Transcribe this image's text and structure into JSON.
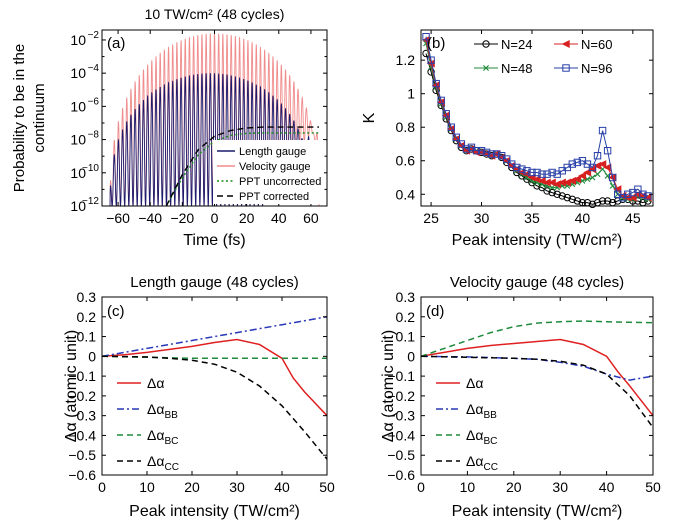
{
  "chart_data": [
    {
      "panel": "(a)",
      "type": "line",
      "title": "10 TW/cm² (48 cycles)",
      "xlabel": "Time (fs)",
      "ylabel_lines": [
        "Probability to be in the",
        "continuum"
      ],
      "xlim": [
        -70,
        70
      ],
      "ylim_log10": [
        -12,
        -1.4
      ],
      "yscale": "log",
      "xticks": [
        -60,
        -40,
        -20,
        0,
        20,
        40,
        60
      ],
      "xtick_labels": [
        "−60",
        "−40",
        "−20",
        "0",
        "20",
        "40",
        "60"
      ],
      "yticks_log10": [
        -12,
        -10,
        -8,
        -6,
        -4,
        -2
      ],
      "ytick_mantissa": "10",
      "ytick_exponents": [
        "−12",
        "−10",
        "−8",
        "−6",
        "−4",
        "−2"
      ],
      "grid": false,
      "legend_position": "bottom-right",
      "series": [
        {
          "name": "Length gauge",
          "color": "#1c1c6e",
          "style": "oscillating",
          "envelope_peak_log10": -4.0,
          "floor_log10": -12.0,
          "x_range": [
            -65,
            60
          ],
          "converges_to_log10": -7.6
        },
        {
          "name": "Velocity gauge",
          "color": "#f08c8c",
          "style": "oscillating",
          "envelope_peak_log10": -1.6,
          "floor_log10": -12.0,
          "x_range": [
            -65,
            65
          ],
          "converges_to_log10": -7.6
        },
        {
          "name": "PPT uncorrected",
          "color": "#1a8a1a",
          "style": "dotted",
          "x": [
            -30,
            -20,
            -10,
            0,
            10,
            20,
            30,
            65
          ],
          "y_log10": [
            -12,
            -10.3,
            -8.9,
            -8.1,
            -7.75,
            -7.62,
            -7.6,
            -7.6
          ]
        },
        {
          "name": "PPT corrected",
          "color": "#000000",
          "style": "dashed",
          "x": [
            -30,
            -20,
            -10,
            0,
            10,
            20,
            30,
            65
          ],
          "y_log10": [
            -12,
            -10.1,
            -8.6,
            -7.8,
            -7.45,
            -7.3,
            -7.25,
            -7.25
          ]
        }
      ]
    },
    {
      "panel": "(b)",
      "type": "line",
      "xlabel": "Peak intensity (TW/cm²)",
      "ylabel": "K",
      "xlim": [
        24,
        47
      ],
      "ylim": [
        0.33,
        1.38
      ],
      "xticks": [
        25,
        30,
        35,
        40,
        45
      ],
      "yticks": [
        0.4,
        0.6,
        0.8,
        1.0,
        1.2
      ],
      "ytick_labels": [
        "0.4",
        "0.6",
        "0.8",
        "1",
        "1.2"
      ],
      "grid": false,
      "legend_position": "top",
      "series": [
        {
          "name": "N=24",
          "color": "#000000",
          "marker": "circle",
          "x": [
            24.5,
            25,
            25.5,
            26,
            26.5,
            27,
            27.5,
            28,
            28.5,
            29,
            29.5,
            30,
            30.5,
            31,
            31.5,
            32,
            32.5,
            33,
            33.5,
            34,
            34.5,
            35,
            35.5,
            36,
            36.5,
            37,
            37.5,
            38,
            38.5,
            39,
            39.5,
            40,
            40.5,
            41,
            41.5,
            42,
            42.5,
            43,
            43.5,
            44,
            44.5,
            45,
            45.5,
            46,
            46.5
          ],
          "y": [
            1.24,
            1.13,
            1.02,
            0.93,
            0.85,
            0.78,
            0.72,
            0.68,
            0.66,
            0.67,
            0.66,
            0.65,
            0.64,
            0.63,
            0.64,
            0.62,
            0.59,
            0.56,
            0.53,
            0.51,
            0.49,
            0.47,
            0.45,
            0.44,
            0.42,
            0.41,
            0.4,
            0.39,
            0.38,
            0.37,
            0.36,
            0.35,
            0.35,
            0.34,
            0.35,
            0.36,
            0.36,
            0.35,
            0.36,
            0.37,
            0.37,
            0.36,
            0.36,
            0.35,
            0.36
          ]
        },
        {
          "name": "N=60",
          "color": "#d82020",
          "marker": "triangle-left",
          "x": [
            24.5,
            25,
            25.5,
            26,
            26.5,
            27,
            27.5,
            28,
            28.5,
            29,
            29.5,
            30,
            30.5,
            31,
            31.5,
            32,
            32.5,
            33,
            33.5,
            34,
            34.5,
            35,
            35.5,
            36,
            36.5,
            37,
            37.5,
            38,
            38.5,
            39,
            39.5,
            40,
            40.5,
            41,
            41.5,
            42,
            42.5,
            43,
            43.5,
            44,
            44.5,
            45,
            45.5,
            46,
            46.5
          ],
          "y": [
            1.32,
            1.18,
            1.05,
            0.95,
            0.87,
            0.79,
            0.73,
            0.69,
            0.66,
            0.67,
            0.65,
            0.65,
            0.64,
            0.63,
            0.64,
            0.62,
            0.6,
            0.57,
            0.55,
            0.53,
            0.52,
            0.5,
            0.49,
            0.48,
            0.47,
            0.47,
            0.46,
            0.47,
            0.47,
            0.48,
            0.49,
            0.51,
            0.53,
            0.55,
            0.57,
            0.58,
            0.56,
            0.5,
            0.43,
            0.39,
            0.38,
            0.38,
            0.4,
            0.39,
            0.38
          ]
        },
        {
          "name": "N=48",
          "color": "#1f8a3a",
          "marker": "x",
          "x": [
            24.5,
            25,
            25.5,
            26,
            26.5,
            27,
            27.5,
            28,
            28.5,
            29,
            29.5,
            30,
            30.5,
            31,
            31.5,
            32,
            32.5,
            33,
            33.5,
            34,
            34.5,
            35,
            35.5,
            36,
            36.5,
            37,
            37.5,
            38,
            38.5,
            39,
            39.5,
            40,
            40.5,
            41,
            41.5,
            42,
            42.5,
            43,
            43.5,
            44,
            44.5,
            45,
            45.5,
            46,
            46.5
          ],
          "y": [
            1.3,
            1.16,
            1.04,
            0.94,
            0.86,
            0.79,
            0.73,
            0.69,
            0.66,
            0.67,
            0.66,
            0.65,
            0.64,
            0.63,
            0.64,
            0.62,
            0.6,
            0.57,
            0.54,
            0.52,
            0.5,
            0.48,
            0.47,
            0.46,
            0.45,
            0.44,
            0.44,
            0.45,
            0.45,
            0.46,
            0.47,
            0.48,
            0.49,
            0.5,
            0.52,
            0.55,
            0.51,
            0.45,
            0.4,
            0.38,
            0.37,
            0.37,
            0.39,
            0.38,
            0.37
          ]
        },
        {
          "name": "N=96",
          "color": "#2840a8",
          "marker": "square",
          "x": [
            24.5,
            25,
            25.5,
            26,
            26.5,
            27,
            27.5,
            28,
            28.5,
            29,
            29.5,
            30,
            30.5,
            31,
            31.5,
            32,
            32.5,
            33,
            33.5,
            34,
            34.5,
            35,
            35.5,
            36,
            36.5,
            37,
            37.5,
            38,
            38.5,
            39,
            39.5,
            40,
            40.5,
            41,
            41.5,
            42,
            42.5,
            43,
            43.5,
            44,
            44.5,
            45,
            45.5,
            46,
            46.5
          ],
          "y": [
            1.34,
            1.2,
            1.06,
            0.96,
            0.88,
            0.8,
            0.74,
            0.7,
            0.67,
            0.68,
            0.66,
            0.66,
            0.65,
            0.64,
            0.64,
            0.63,
            0.61,
            0.58,
            0.56,
            0.55,
            0.54,
            0.53,
            0.53,
            0.52,
            0.52,
            0.53,
            0.52,
            0.54,
            0.56,
            0.58,
            0.59,
            0.6,
            0.58,
            0.56,
            0.63,
            0.78,
            0.66,
            0.5,
            0.4,
            0.38,
            0.4,
            0.41,
            0.43,
            0.4,
            0.39
          ]
        }
      ]
    },
    {
      "panel": "(c)",
      "type": "line",
      "title": "Length gauge (48 cycles)",
      "xlabel": "Peak intensity (TW/cm²)",
      "ylabel": "Δα (atomic unit)",
      "xlim": [
        0,
        50
      ],
      "ylim": [
        -0.6,
        0.3
      ],
      "xticks": [
        0,
        10,
        20,
        30,
        40,
        50
      ],
      "yticks": [
        -0.6,
        -0.5,
        -0.4,
        -0.3,
        -0.2,
        -0.1,
        0,
        0.1,
        0.2,
        0.3
      ],
      "ytick_labels": [
        "−0.6",
        "−0.5",
        "−0.4",
        "−0.3",
        "−0.2",
        "−0.1",
        "0",
        "0.1",
        "0.2",
        "0.3"
      ],
      "grid": false,
      "legend_position": "bottom-left",
      "series": [
        {
          "name": "Δα",
          "color": "#e02020",
          "style": "solid",
          "x": [
            0,
            5,
            10,
            15,
            20,
            25,
            30,
            35,
            40,
            42.5,
            45,
            50
          ],
          "y": [
            0,
            0.008,
            0.02,
            0.035,
            0.05,
            0.07,
            0.085,
            0.06,
            -0.01,
            -0.11,
            -0.18,
            -0.3
          ]
        },
        {
          "name": "Δα_BB",
          "color": "#2838b8",
          "style": "dash-dot",
          "x": [
            0,
            10,
            20,
            30,
            40,
            50
          ],
          "y": [
            0,
            0.04,
            0.08,
            0.12,
            0.16,
            0.2
          ]
        },
        {
          "name": "Δα_BC",
          "color": "#1e8a3c",
          "style": "dashed",
          "x": [
            0,
            10,
            20,
            30,
            40,
            50
          ],
          "y": [
            0,
            -0.005,
            -0.01,
            -0.01,
            -0.01,
            -0.01
          ]
        },
        {
          "name": "Δα_CC",
          "color": "#000000",
          "style": "dashed",
          "x": [
            0,
            10,
            15,
            20,
            25,
            30,
            35,
            40,
            45,
            50
          ],
          "y": [
            0,
            -0.003,
            -0.01,
            -0.02,
            -0.04,
            -0.08,
            -0.15,
            -0.25,
            -0.38,
            -0.52
          ]
        }
      ]
    },
    {
      "panel": "(d)",
      "type": "line",
      "title": "Velocity gauge (48 cycles)",
      "xlabel": "Peak intensity (TW/cm²)",
      "ylabel": "Δα (atomic unit)",
      "xlim": [
        0,
        50
      ],
      "ylim": [
        -0.6,
        0.3
      ],
      "xticks": [
        0,
        10,
        20,
        30,
        40,
        50
      ],
      "yticks": [
        -0.6,
        -0.5,
        -0.4,
        -0.3,
        -0.2,
        -0.1,
        0,
        0.1,
        0.2,
        0.3
      ],
      "ytick_labels": [
        "−0.6",
        "−0.5",
        "−0.4",
        "−0.3",
        "−0.2",
        "−0.1",
        "0",
        "0.1",
        "0.2",
        "0.3"
      ],
      "grid": false,
      "legend_position": "bottom-left",
      "series": [
        {
          "name": "Δα",
          "color": "#e02020",
          "style": "solid",
          "x": [
            0,
            5,
            10,
            15,
            20,
            25,
            30,
            35,
            40,
            42.5,
            45,
            50
          ],
          "y": [
            0,
            0.02,
            0.04,
            0.055,
            0.065,
            0.075,
            0.085,
            0.06,
            0.0,
            -0.08,
            -0.15,
            -0.3
          ]
        },
        {
          "name": "Δα_BB",
          "color": "#2838b8",
          "style": "dash-dot",
          "x": [
            0,
            10,
            20,
            25,
            30,
            35,
            40,
            45,
            50
          ],
          "y": [
            0,
            -0.003,
            -0.01,
            -0.015,
            -0.03,
            -0.05,
            -0.09,
            -0.12,
            -0.1
          ]
        },
        {
          "name": "Δα_BC",
          "color": "#1e8a3c",
          "style": "dashed",
          "x": [
            0,
            5,
            10,
            15,
            20,
            25,
            30,
            35,
            40,
            45,
            50
          ],
          "y": [
            0,
            0.04,
            0.08,
            0.12,
            0.15,
            0.168,
            0.175,
            0.178,
            0.175,
            0.172,
            0.17
          ]
        },
        {
          "name": "Δα_CC",
          "color": "#000000",
          "style": "dashed",
          "x": [
            0,
            10,
            20,
            25,
            30,
            35,
            40,
            45,
            50
          ],
          "y": [
            0,
            -0.005,
            -0.01,
            -0.015,
            -0.025,
            -0.045,
            -0.09,
            -0.2,
            -0.36
          ]
        }
      ]
    }
  ]
}
